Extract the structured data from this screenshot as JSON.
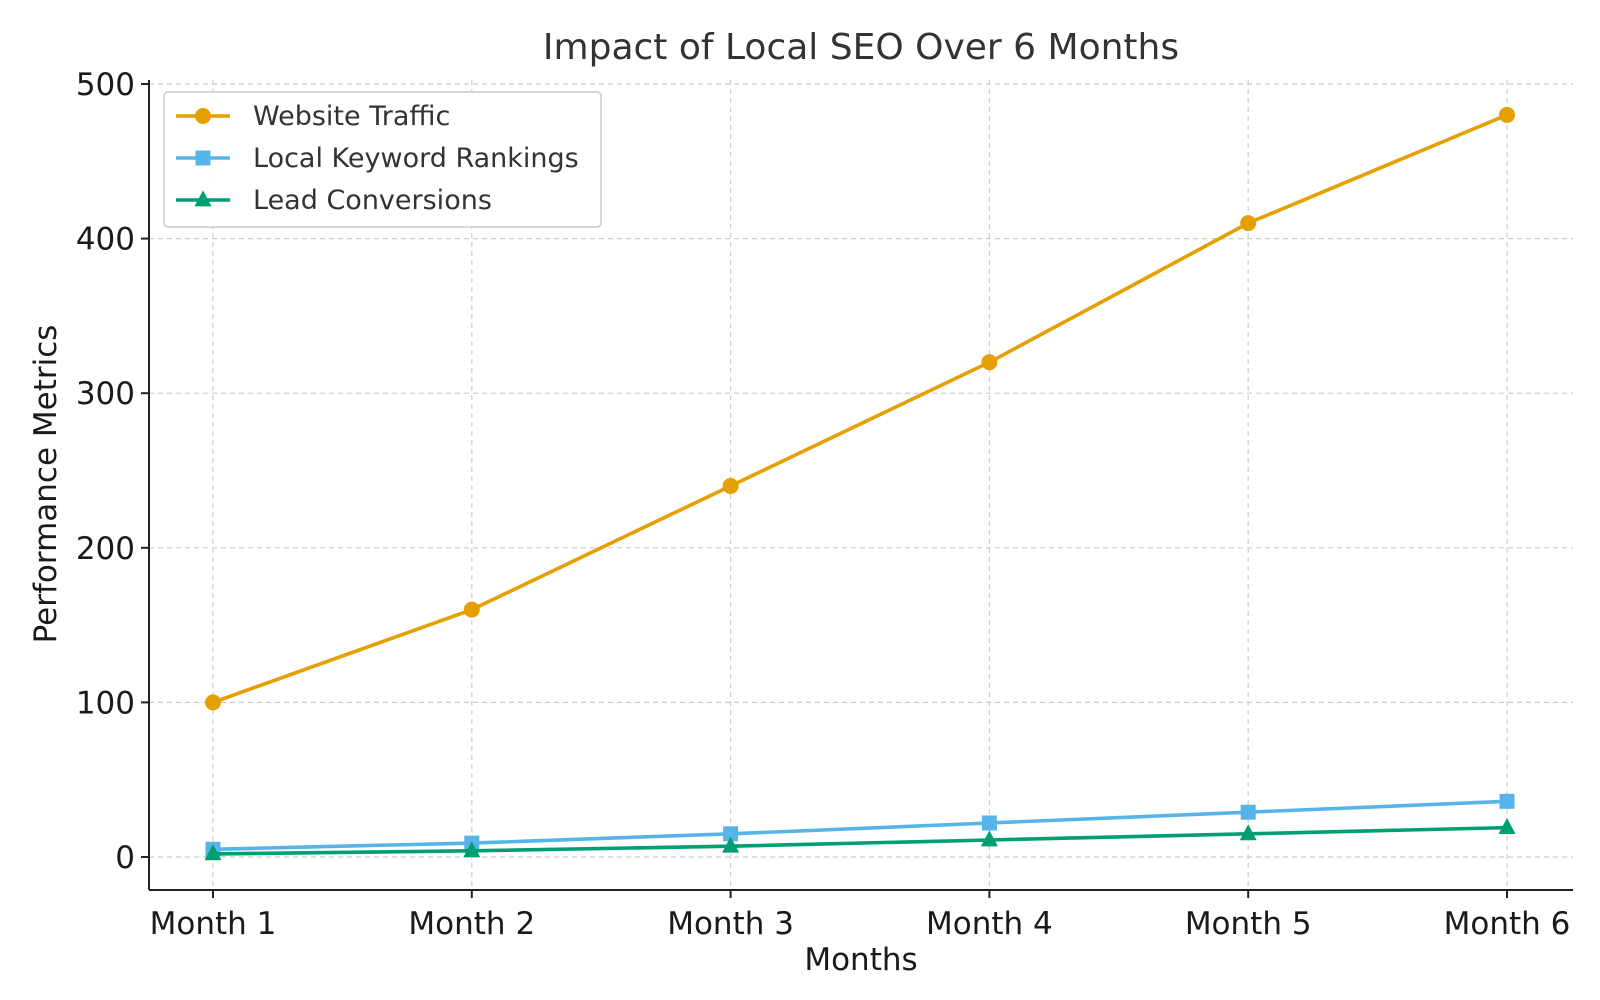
{
  "chart_data": {
    "type": "line",
    "title": "Impact of Local SEO Over 6 Months",
    "xlabel": "Months",
    "ylabel": "Performance Metrics",
    "categories": [
      "Month 1",
      "Month 2",
      "Month 3",
      "Month 4",
      "Month 5",
      "Month 6"
    ],
    "yticks": [
      "0",
      "100",
      "200",
      "300",
      "400",
      "500"
    ],
    "ylim": [
      -22,
      520
    ],
    "grid": true,
    "legend_position": "top-left",
    "series": [
      {
        "name": "Website Traffic",
        "values": [
          100,
          160,
          240,
          320,
          410,
          480
        ],
        "color": "#E69F00",
        "marker": "circle"
      },
      {
        "name": "Local Keyword Rankings",
        "values": [
          5,
          9,
          15,
          22,
          29,
          36
        ],
        "color": "#56B4E9",
        "marker": "square"
      },
      {
        "name": "Lead Conversions",
        "values": [
          2,
          4,
          7,
          11,
          15,
          19
        ],
        "color": "#009E73",
        "marker": "triangle"
      }
    ]
  }
}
